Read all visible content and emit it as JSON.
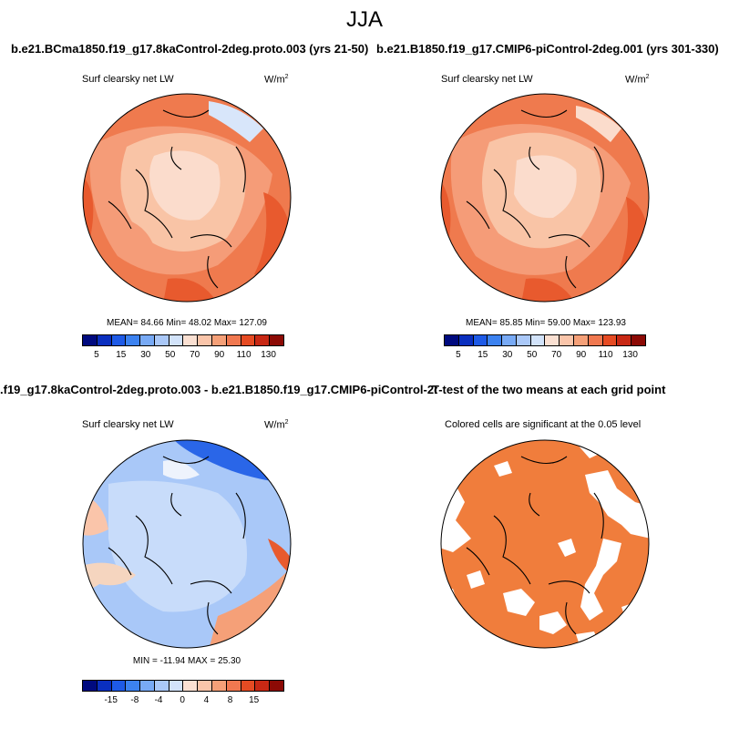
{
  "page_title": "JJA",
  "panels": [
    {
      "title": "b.e21.BCma1850.f19_g17.8kaControl-2deg.proto.003 (yrs 21-50)",
      "subtitle": "Surf clearsky net LW",
      "units": "W/m",
      "units_exp": "2",
      "stats": "MEAN=  84.66   Min=  48.02   Max= 127.09",
      "stats_values": {
        "mean": 84.66,
        "min": 48.02,
        "max": 127.09
      },
      "colorbar": {
        "colors": [
          "#000a7f",
          "#0a2fbf",
          "#1e5ae6",
          "#3c82f0",
          "#78aaf5",
          "#aac8f8",
          "#d2e3fa",
          "#fae0d2",
          "#fac5aa",
          "#f5a078",
          "#f07850",
          "#e64b23",
          "#c82814",
          "#8c0a05"
        ],
        "tick_labels": [
          "5",
          "15",
          "30",
          "50",
          "70",
          "90",
          "110",
          "130"
        ]
      }
    },
    {
      "title": "b.e21.B1850.f19_g17.CMIP6-piControl-2deg.001 (yrs 301-330)",
      "subtitle": "Surf clearsky net LW",
      "units": "W/m",
      "units_exp": "2",
      "stats": "MEAN=  85.85   Min=  59.00   Max= 123.93",
      "stats_values": {
        "mean": 85.85,
        "min": 59.0,
        "max": 123.93
      },
      "colorbar": {
        "colors": [
          "#000a7f",
          "#0a2fbf",
          "#1e5ae6",
          "#3c82f0",
          "#78aaf5",
          "#aac8f8",
          "#d2e3fa",
          "#fae0d2",
          "#fac5aa",
          "#f5a078",
          "#f07850",
          "#e64b23",
          "#c82814",
          "#8c0a05"
        ],
        "tick_labels": [
          "5",
          "15",
          "30",
          "50",
          "70",
          "90",
          "110",
          "130"
        ]
      }
    },
    {
      "title": ".f19_g17.8kaControl-2deg.proto.003 - b.e21.B1850.f19_g17.CMIP6-piControl-2deg.001",
      "subtitle": "Surf clearsky net LW",
      "units": "W/m",
      "units_exp": "2",
      "stats": "MIN = -11.94  MAX =  25.30",
      "stats_values": {
        "min": -11.94,
        "max": 25.3
      },
      "colorbar": {
        "colors": [
          "#000a7f",
          "#0a2fbf",
          "#1e5ae6",
          "#3c82f0",
          "#78aaf5",
          "#aac8f8",
          "#d2e3fa",
          "#fae0d2",
          "#fac5aa",
          "#f5a078",
          "#f07850",
          "#e64b23",
          "#c82814",
          "#8c0a05"
        ],
        "tick_labels": [
          "-15",
          "-8",
          "-4",
          "0",
          "4",
          "8",
          "15"
        ]
      }
    },
    {
      "title": "T-test of the two means at each grid point",
      "subtitle": "Colored cells are significant at the 0.05 level",
      "significant_color": "#f07d3c"
    }
  ]
}
